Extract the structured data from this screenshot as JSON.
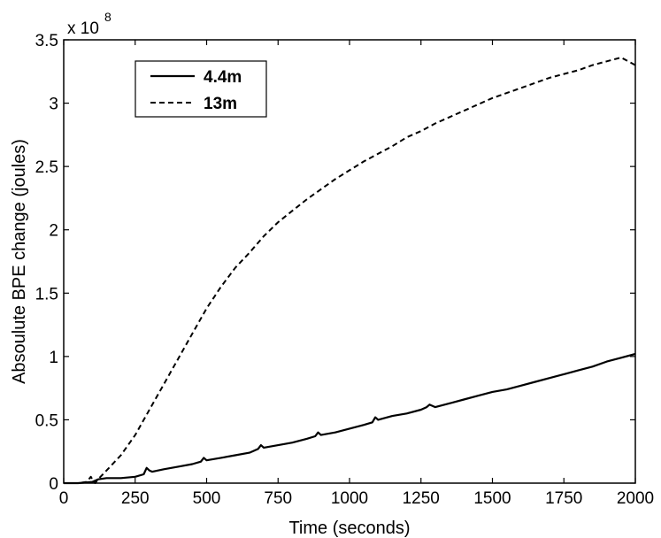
{
  "chart_data": {
    "type": "line",
    "xlabel": "Time (seconds)",
    "ylabel": "Absoulute BPE change (joules)",
    "xlim": [
      0,
      2000
    ],
    "ylim": [
      0,
      3.5
    ],
    "y_multiplier": {
      "base": "x 10",
      "exponent": "8"
    },
    "x_ticks": [
      "0",
      "250",
      "500",
      "750",
      "1000",
      "1250",
      "1500",
      "1750",
      "2000"
    ],
    "y_ticks": [
      "0",
      "0.5",
      "1",
      "1.5",
      "2",
      "2.5",
      "3",
      "3.5"
    ],
    "grid": false,
    "legend_position": "top-left",
    "series": [
      {
        "name": "4.4m",
        "style": "solid",
        "color": "#000000",
        "x": [
          0,
          50,
          100,
          120,
          150,
          200,
          250,
          280,
          290,
          300,
          310,
          350,
          400,
          450,
          480,
          490,
          500,
          550,
          600,
          650,
          680,
          690,
          700,
          750,
          800,
          850,
          880,
          890,
          900,
          950,
          1000,
          1050,
          1080,
          1090,
          1100,
          1150,
          1200,
          1250,
          1270,
          1280,
          1300,
          1350,
          1400,
          1450,
          1500,
          1550,
          1600,
          1650,
          1700,
          1750,
          1800,
          1850,
          1900,
          1950,
          2000
        ],
        "values": [
          0,
          0.0,
          0.01,
          0.03,
          0.04,
          0.04,
          0.05,
          0.07,
          0.12,
          0.1,
          0.09,
          0.11,
          0.13,
          0.15,
          0.17,
          0.2,
          0.18,
          0.2,
          0.22,
          0.24,
          0.27,
          0.3,
          0.28,
          0.3,
          0.32,
          0.35,
          0.37,
          0.4,
          0.38,
          0.4,
          0.43,
          0.46,
          0.48,
          0.52,
          0.5,
          0.53,
          0.55,
          0.58,
          0.6,
          0.62,
          0.6,
          0.63,
          0.66,
          0.69,
          0.72,
          0.74,
          0.77,
          0.8,
          0.83,
          0.86,
          0.89,
          0.92,
          0.96,
          0.99,
          1.02
        ]
      },
      {
        "name": "13m",
        "style": "dashed",
        "color": "#000000",
        "x": [
          0,
          50,
          80,
          95,
          100,
          110,
          120,
          150,
          200,
          250,
          300,
          350,
          400,
          450,
          500,
          550,
          600,
          650,
          700,
          750,
          800,
          850,
          900,
          950,
          1000,
          1050,
          1100,
          1150,
          1200,
          1250,
          1300,
          1350,
          1400,
          1450,
          1500,
          1550,
          1600,
          1650,
          1700,
          1750,
          1800,
          1850,
          1900,
          1950,
          2000
        ],
        "values": [
          0,
          0,
          0.01,
          0.05,
          0.03,
          0.0,
          0.03,
          0.1,
          0.22,
          0.38,
          0.58,
          0.78,
          0.98,
          1.18,
          1.38,
          1.55,
          1.7,
          1.82,
          1.95,
          2.06,
          2.15,
          2.24,
          2.32,
          2.4,
          2.47,
          2.54,
          2.6,
          2.66,
          2.73,
          2.78,
          2.84,
          2.89,
          2.94,
          2.99,
          3.04,
          3.08,
          3.12,
          3.16,
          3.2,
          3.23,
          3.26,
          3.3,
          3.33,
          3.36,
          3.3
        ]
      }
    ]
  }
}
